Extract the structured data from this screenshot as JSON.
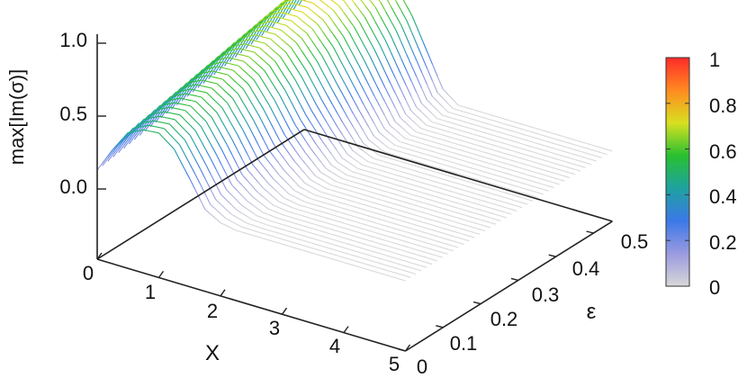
{
  "chart_data": {
    "type": "surface3d",
    "title": "",
    "xlabel": "X",
    "ylabel": "ε",
    "zlabel": "max[Im(σ)]",
    "xlim": [
      0,
      5
    ],
    "ylim": [
      0,
      0.55
    ],
    "zlim": [
      0,
      1.0
    ],
    "x_ticks": [
      "0",
      "1",
      "2",
      "3",
      "4",
      "5"
    ],
    "y_ticks": [
      "0",
      "0.1",
      "0.2",
      "0.3",
      "0.4",
      "0.5"
    ],
    "z_ticks": [
      "0.0",
      "0.5",
      "1.0"
    ],
    "colorbar": {
      "range": [
        0,
        1
      ],
      "ticks": [
        "0",
        "0.2",
        "0.4",
        "0.6",
        "0.8",
        "1"
      ],
      "colors": [
        "#d8d8d8",
        "#9a9ae0",
        "#3c78e8",
        "#1ea2a0",
        "#28c030",
        "#d8e020",
        "#ff8a20",
        "#ff2a2a"
      ]
    },
    "surface": {
      "description_of_shape": "ridge",
      "x": [
        0.0,
        0.25,
        0.5,
        0.75,
        1.0,
        1.25,
        1.5,
        1.75,
        2.0,
        2.25,
        2.5
      ],
      "profile_at_eps_0": [
        0.13,
        0.3,
        0.45,
        0.5,
        0.51,
        0.43,
        0.26,
        0.08,
        0.02,
        0.0,
        0.0
      ],
      "profile_at_eps_0.55": [
        0.4,
        0.62,
        0.76,
        0.82,
        0.82,
        0.78,
        0.68,
        0.52,
        0.3,
        0.08,
        0.0
      ],
      "x_cutoff_at_eps_0": 2.1,
      "x_cutoff_at_eps_0.55": 2.5,
      "flat_value": 0.0,
      "n_lines": 40
    }
  }
}
